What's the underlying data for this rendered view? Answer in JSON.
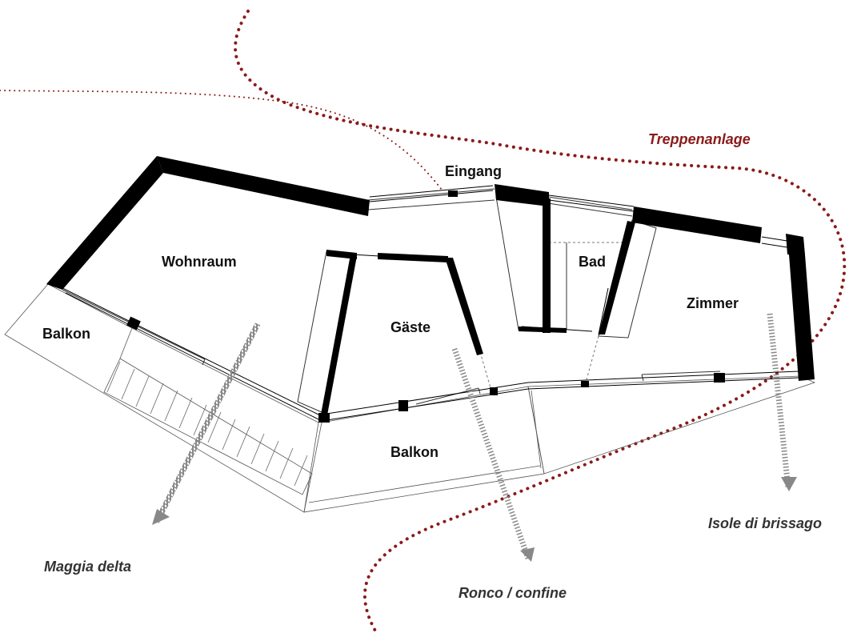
{
  "rooms": {
    "wohnraum": "Wohnraum",
    "eingang": "Eingang",
    "bad": "Bad",
    "gaeste": "Gäste",
    "zimmer": "Zimmer",
    "balkon_west": "Balkon",
    "balkon_south": "Balkon"
  },
  "annotations": {
    "stairs": "Treppenanlage"
  },
  "views": {
    "maggia": "Maggia delta",
    "ronco": "Ronco / confine",
    "isole": "Isole di brissago"
  },
  "colors": {
    "path": "#8b1a1a",
    "wall": "#000000",
    "view_label": "#333333",
    "view_arrow": "#888888"
  }
}
